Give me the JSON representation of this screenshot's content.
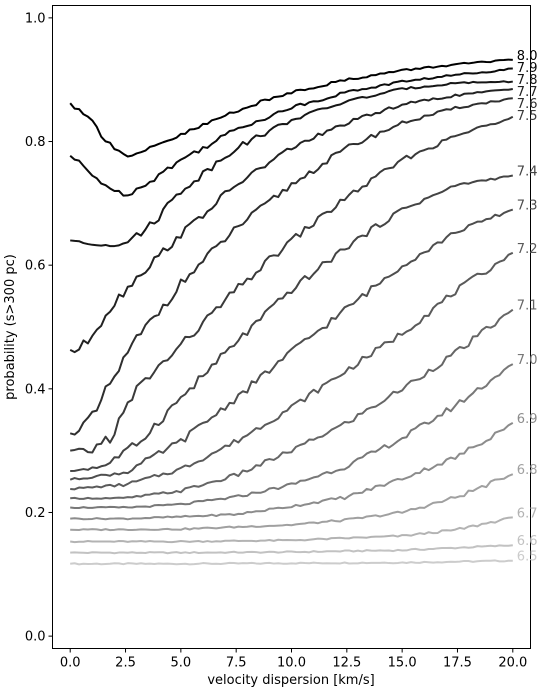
{
  "chart_data": {
    "type": "line",
    "xlabel": "velocity dispersion [km/s]",
    "ylabel": "probability (s>300 pc)",
    "xlim": [
      -0.8,
      20.8
    ],
    "ylim": [
      -0.02,
      1.02
    ],
    "x_ticks": [
      "0.0",
      "2.5",
      "5.0",
      "7.5",
      "10.0",
      "12.5",
      "15.0",
      "17.5",
      "20.0"
    ],
    "y_ticks": [
      "0.0",
      "0.2",
      "0.4",
      "0.6",
      "0.8",
      "1.0"
    ],
    "grid": false,
    "legend": "labels at right end of each line",
    "series": [
      {
        "name": "6.5",
        "color": "#cccccc",
        "x": [
          0,
          5,
          10,
          15,
          20
        ],
        "values": [
          0.117,
          0.117,
          0.118,
          0.119,
          0.122
        ]
      },
      {
        "name": "6.6",
        "color": "#c2c2c2",
        "x": [
          0,
          5,
          10,
          15,
          20
        ],
        "values": [
          0.135,
          0.135,
          0.136,
          0.139,
          0.147
        ]
      },
      {
        "name": "6.7",
        "color": "#b3b3b3",
        "x": [
          0,
          5,
          10,
          15,
          17.5,
          20
        ],
        "values": [
          0.153,
          0.153,
          0.155,
          0.162,
          0.172,
          0.192
        ]
      },
      {
        "name": "6.8",
        "color": "#a0a0a0",
        "x": [
          0,
          5,
          10,
          12.5,
          15,
          17.5,
          20
        ],
        "values": [
          0.172,
          0.173,
          0.18,
          0.188,
          0.2,
          0.225,
          0.262
        ]
      },
      {
        "name": "6.9",
        "color": "#8c8c8c",
        "x": [
          0,
          2.5,
          5,
          7.5,
          10,
          12.5,
          15,
          17.5,
          20
        ],
        "values": [
          0.19,
          0.19,
          0.193,
          0.197,
          0.21,
          0.225,
          0.255,
          0.29,
          0.345
        ]
      },
      {
        "name": "7.0",
        "color": "#787878",
        "x": [
          0,
          2.5,
          5,
          7.5,
          10,
          12.5,
          15,
          17.5,
          20
        ],
        "values": [
          0.208,
          0.208,
          0.213,
          0.225,
          0.245,
          0.275,
          0.32,
          0.375,
          0.44
        ]
      },
      {
        "name": "7.1",
        "color": "#666666",
        "x": [
          0,
          2.5,
          5,
          7.5,
          10,
          12.5,
          15,
          17.5,
          20
        ],
        "values": [
          0.223,
          0.223,
          0.235,
          0.26,
          0.3,
          0.345,
          0.4,
          0.46,
          0.528
        ]
      },
      {
        "name": "7.2",
        "color": "#5a5a5a",
        "x": [
          0,
          2.5,
          5,
          7.5,
          10,
          12.5,
          15,
          17.5,
          20
        ],
        "values": [
          0.238,
          0.245,
          0.27,
          0.315,
          0.37,
          0.43,
          0.49,
          0.56,
          0.62
        ]
      },
      {
        "name": "7.3",
        "color": "#4e4e4e",
        "x": [
          0,
          2.5,
          5,
          7.5,
          10,
          12.5,
          15,
          17.5,
          20
        ],
        "values": [
          0.253,
          0.265,
          0.315,
          0.385,
          0.46,
          0.53,
          0.6,
          0.655,
          0.69
        ]
      },
      {
        "name": "7.4",
        "color": "#444444",
        "x": [
          0,
          1.5,
          3,
          5,
          7.5,
          10,
          12.5,
          15,
          17.5,
          20
        ],
        "values": [
          0.267,
          0.275,
          0.31,
          0.385,
          0.475,
          0.56,
          0.63,
          0.69,
          0.73,
          0.745
        ]
      },
      {
        "name": "7.5",
        "color": "#3a3a3a",
        "x": [
          0,
          1,
          2,
          3,
          5,
          7.5,
          10,
          12.5,
          15,
          17.5,
          20
        ],
        "values": [
          0.3,
          0.3,
          0.33,
          0.4,
          0.47,
          0.56,
          0.64,
          0.71,
          0.77,
          0.81,
          0.84
        ]
      },
      {
        "name": "7.6",
        "color": "#2e2e2e",
        "x": [
          0,
          1,
          2,
          3,
          5,
          7.5,
          10,
          12.5,
          15,
          17.5,
          20
        ],
        "values": [
          0.328,
          0.35,
          0.42,
          0.48,
          0.57,
          0.66,
          0.73,
          0.79,
          0.83,
          0.855,
          0.87
        ]
      },
      {
        "name": "7.7",
        "color": "#222222",
        "x": [
          0,
          0.5,
          1,
          2,
          3,
          5,
          7.5,
          10,
          12.5,
          15,
          17.5,
          20
        ],
        "values": [
          0.463,
          0.463,
          0.49,
          0.54,
          0.58,
          0.65,
          0.73,
          0.79,
          0.83,
          0.86,
          0.875,
          0.885
        ]
      },
      {
        "name": "7.8",
        "color": "#161616",
        "x": [
          0,
          1,
          2,
          3,
          4,
          5,
          7.5,
          10,
          12.5,
          15,
          17.5,
          20
        ],
        "values": [
          0.64,
          0.633,
          0.633,
          0.645,
          0.68,
          0.72,
          0.79,
          0.835,
          0.865,
          0.885,
          0.895,
          0.897
        ]
      },
      {
        "name": "7.9",
        "color": "#0b0b0b",
        "x": [
          0,
          1,
          2,
          2.5,
          3,
          5,
          7.5,
          10,
          12.5,
          15,
          17.5,
          20
        ],
        "values": [
          0.777,
          0.745,
          0.72,
          0.715,
          0.722,
          0.77,
          0.82,
          0.855,
          0.88,
          0.897,
          0.908,
          0.918
        ]
      },
      {
        "name": "8.0",
        "color": "#000000",
        "x": [
          0,
          0.5,
          1,
          2,
          2.5,
          3,
          4,
          5,
          7.5,
          10,
          12.5,
          15,
          17.5,
          20
        ],
        "values": [
          0.862,
          0.855,
          0.83,
          0.79,
          0.777,
          0.777,
          0.795,
          0.81,
          0.85,
          0.88,
          0.9,
          0.915,
          0.925,
          0.932
        ]
      }
    ]
  }
}
